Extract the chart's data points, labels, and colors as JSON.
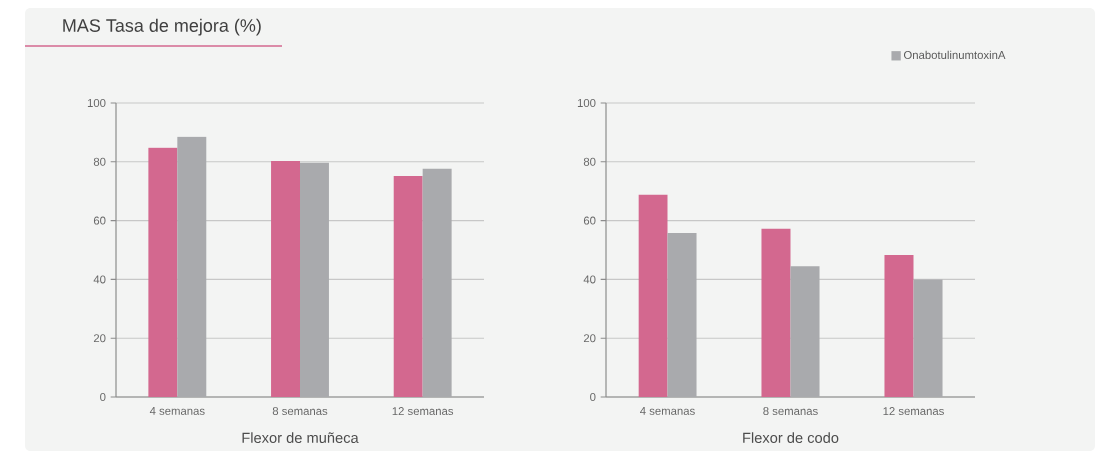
{
  "chart_data": [
    {
      "type": "bar",
      "title": "MAS Tasa de mejora (%)",
      "xlabel": "Flexor de muñeca",
      "categories": [
        "4 semanas",
        "8 semanas",
        "12 semanas"
      ],
      "series": [
        {
          "color": "#d3688f",
          "values": [
            84.8,
            80.3,
            75.2
          ]
        },
        {
          "color": "#a9aaad",
          "values": [
            88.5,
            79.7,
            77.6
          ]
        }
      ],
      "ylim": [
        0,
        100
      ],
      "yticks": [
        0,
        20,
        40,
        60,
        80,
        100
      ],
      "grid": "y"
    },
    {
      "type": "bar",
      "xlabel": "Flexor de codo",
      "categories": [
        "4 semanas",
        "8 semanas",
        "12 semanas"
      ],
      "series": [
        {
          "color": "#d3688f",
          "values": [
            68.8,
            57.2,
            48.3
          ]
        },
        {
          "name": "OnabotulinumtoxinA",
          "color": "#a9aaad",
          "values": [
            55.8,
            44.5,
            40.0
          ]
        }
      ],
      "ylim": [
        0,
        100
      ],
      "yticks": [
        0,
        20,
        40,
        60,
        80,
        100
      ],
      "grid": "y",
      "legend": "top right"
    }
  ]
}
